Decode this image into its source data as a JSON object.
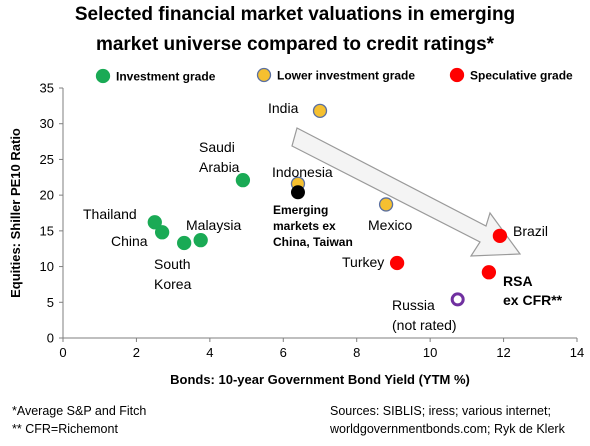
{
  "title_line1": "Selected financial market valuations in emerging",
  "title_line2": "market universe compared to credit ratings*",
  "footnotes": {
    "left1": "*Average S&P and Fitch",
    "left2": "** CFR=Richemont",
    "right1": "Sources: SIBLIS; iress; various internet;",
    "right2": "worldgovernmentbonds.com; Ryk de Klerk"
  },
  "chart_data": {
    "type": "scatter",
    "title": "Selected financial market valuations in emerging market universe compared to credit ratings*",
    "xlabel": "Bonds: 10-year Government Bond Yield (YTM %)",
    "ylabel": "Equities: Shiller PE10 Ratio",
    "xlim": [
      0,
      14
    ],
    "ylim": [
      0,
      35
    ],
    "xticks": [
      0,
      2,
      4,
      6,
      8,
      10,
      12,
      14
    ],
    "yticks": [
      0,
      5,
      10,
      15,
      20,
      25,
      30,
      35
    ],
    "grid": false,
    "legend": [
      {
        "label": "Investment grade",
        "color": "#1aaa55",
        "stroke": "#1aaa55"
      },
      {
        "label": "Lower investment grade",
        "color": "#f5c030",
        "stroke": "#5a6fa0"
      },
      {
        "label": "Speculative grade",
        "color": "#ff0000",
        "stroke": "#ff0000"
      }
    ],
    "points": [
      {
        "label": "Thailand",
        "x": 2.5,
        "y": 16.2,
        "category": "Investment grade"
      },
      {
        "label": "China",
        "x": 2.7,
        "y": 14.8,
        "category": "Investment grade"
      },
      {
        "label": "South Korea",
        "x": 3.3,
        "y": 13.3,
        "category": "Investment grade"
      },
      {
        "label": "Malaysia",
        "x": 3.75,
        "y": 13.7,
        "category": "Investment grade"
      },
      {
        "label": "Saudi Arabia",
        "x": 4.9,
        "y": 22.1,
        "category": "Investment grade"
      },
      {
        "label": "India",
        "x": 7.0,
        "y": 31.8,
        "category": "Lower investment grade"
      },
      {
        "label": "Indonesia",
        "x": 6.4,
        "y": 21.6,
        "category": "Lower investment grade"
      },
      {
        "label": "Mexico",
        "x": 8.8,
        "y": 18.7,
        "category": "Lower investment grade"
      },
      {
        "label": "Emerging markets ex China, Taiwan",
        "x": 6.4,
        "y": 20.4,
        "category": "Benchmark"
      },
      {
        "label": "Brazil",
        "x": 11.9,
        "y": 14.3,
        "category": "Speculative grade"
      },
      {
        "label": "Turkey",
        "x": 9.1,
        "y": 10.5,
        "category": "Speculative grade"
      },
      {
        "label": "RSA ex CFR**",
        "x": 11.6,
        "y": 9.2,
        "category": "Speculative grade"
      },
      {
        "label": "Russia (not rated)",
        "x": 10.75,
        "y": 5.4,
        "category": "Not rated"
      }
    ],
    "colors": {
      "benchmark": "#000000",
      "not_rated_stroke": "#7030a0",
      "arrow_fill": "#f4f4f4",
      "arrow_stroke": "#9a9a9a"
    }
  }
}
